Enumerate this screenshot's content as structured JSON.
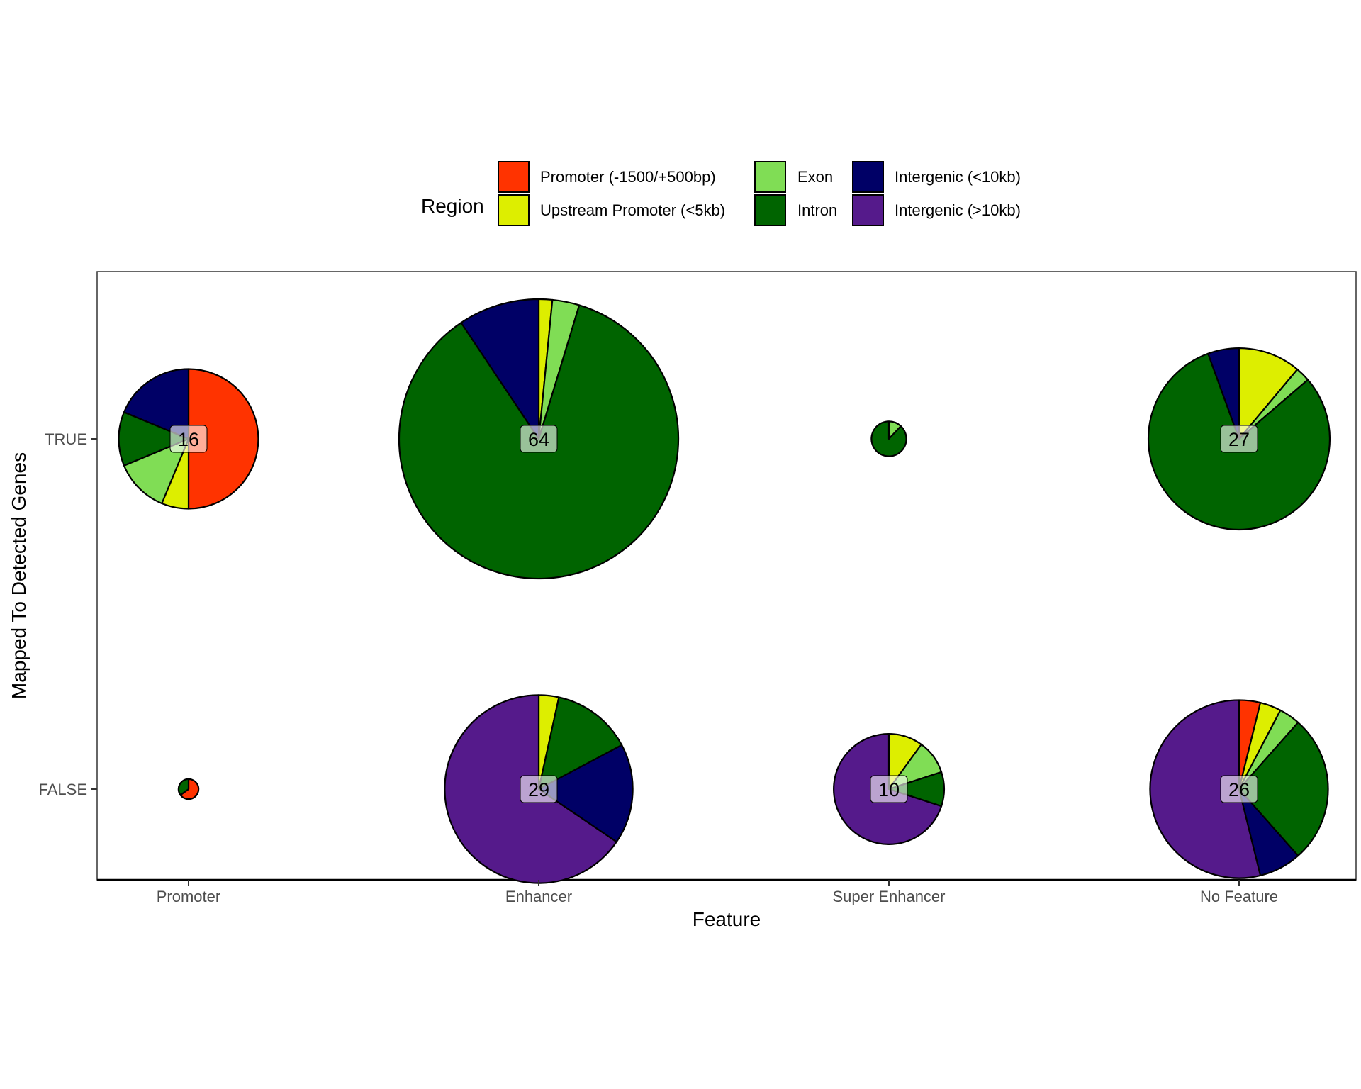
{
  "chart_data": {
    "type": "pie",
    "xlabel": "Feature",
    "ylabel": "Mapped To Detected Genes",
    "x_categories": [
      "Promoter",
      "Enhancer",
      "Super Enhancer",
      "No Feature"
    ],
    "y_categories": [
      "TRUE",
      "FALSE"
    ],
    "legend": {
      "title": "Region",
      "position": "top",
      "entries": [
        {
          "name": "Promoter (-1500/+500bp)",
          "color": "#FF3300"
        },
        {
          "name": "Upstream Promoter (<5kb)",
          "color": "#DDEE00"
        },
        {
          "name": "Exon",
          "color": "#80DD55"
        },
        {
          "name": "Intron",
          "color": "#006400"
        },
        {
          "name": "Intergenic (<10kb)",
          "color": "#000066"
        },
        {
          "name": "Intergenic (>10kb)",
          "color": "#551A8B"
        }
      ]
    },
    "pies": [
      {
        "feature": "Promoter",
        "mapped": "TRUE",
        "count": 16,
        "show_label": true,
        "values": [
          8,
          1,
          2,
          2,
          3,
          0
        ]
      },
      {
        "feature": "Enhancer",
        "mapped": "TRUE",
        "count": 64,
        "show_label": true,
        "values": [
          0,
          1,
          2,
          55,
          6,
          0
        ]
      },
      {
        "feature": "Super Enhancer",
        "mapped": "TRUE",
        "count": 1,
        "show_label": false,
        "values": [
          0,
          0,
          0.12,
          0.88,
          0,
          0
        ]
      },
      {
        "feature": "No Feature",
        "mapped": "TRUE",
        "count": 27,
        "show_label": true,
        "values": [
          0,
          3,
          0.7,
          21.8,
          1.5,
          0
        ]
      },
      {
        "feature": "Promoter",
        "mapped": "FALSE",
        "count": 0.33,
        "show_label": false,
        "values": [
          0.65,
          0,
          0,
          0.35,
          0,
          0
        ]
      },
      {
        "feature": "Enhancer",
        "mapped": "FALSE",
        "count": 29,
        "show_label": true,
        "values": [
          0,
          1,
          0,
          4,
          5,
          19
        ]
      },
      {
        "feature": "Super Enhancer",
        "mapped": "FALSE",
        "count": 10,
        "show_label": true,
        "values": [
          0,
          1,
          1,
          1,
          0,
          7
        ]
      },
      {
        "feature": "No Feature",
        "mapped": "FALSE",
        "count": 26,
        "show_label": true,
        "values": [
          1,
          1,
          1,
          7,
          2,
          14
        ]
      }
    ]
  }
}
